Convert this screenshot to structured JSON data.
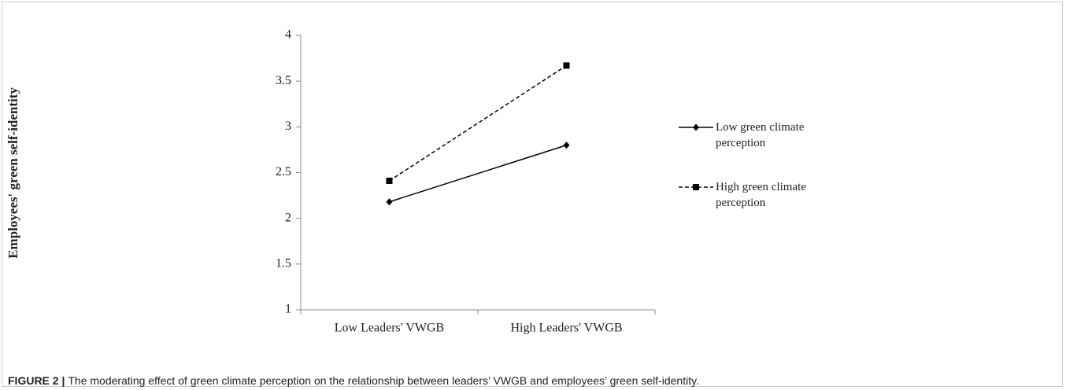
{
  "chart_data": {
    "type": "line",
    "ylabel": "Employees' green self-identity",
    "categories": [
      "Low Leaders' VWGB",
      "High Leaders' VWGB"
    ],
    "series": [
      {
        "name": "Low green climate perception",
        "color": "#000000",
        "linestyle": "solid",
        "marker": "diamond",
        "values": [
          2.18,
          2.8
        ]
      },
      {
        "name": "High green climate perception",
        "color": "#000000",
        "linestyle": "dashed",
        "marker": "square",
        "values": [
          2.41,
          3.67
        ]
      }
    ],
    "ylim": [
      1,
      4
    ],
    "yticks": [
      1,
      1.5,
      2,
      2.5,
      3,
      3.5,
      4
    ],
    "legend": "right"
  },
  "caption": {
    "label": "FIGURE 2 |",
    "text": "The moderating effect of green climate perception on the relationship between leaders’ VWGB and employees’ green self-identity."
  }
}
